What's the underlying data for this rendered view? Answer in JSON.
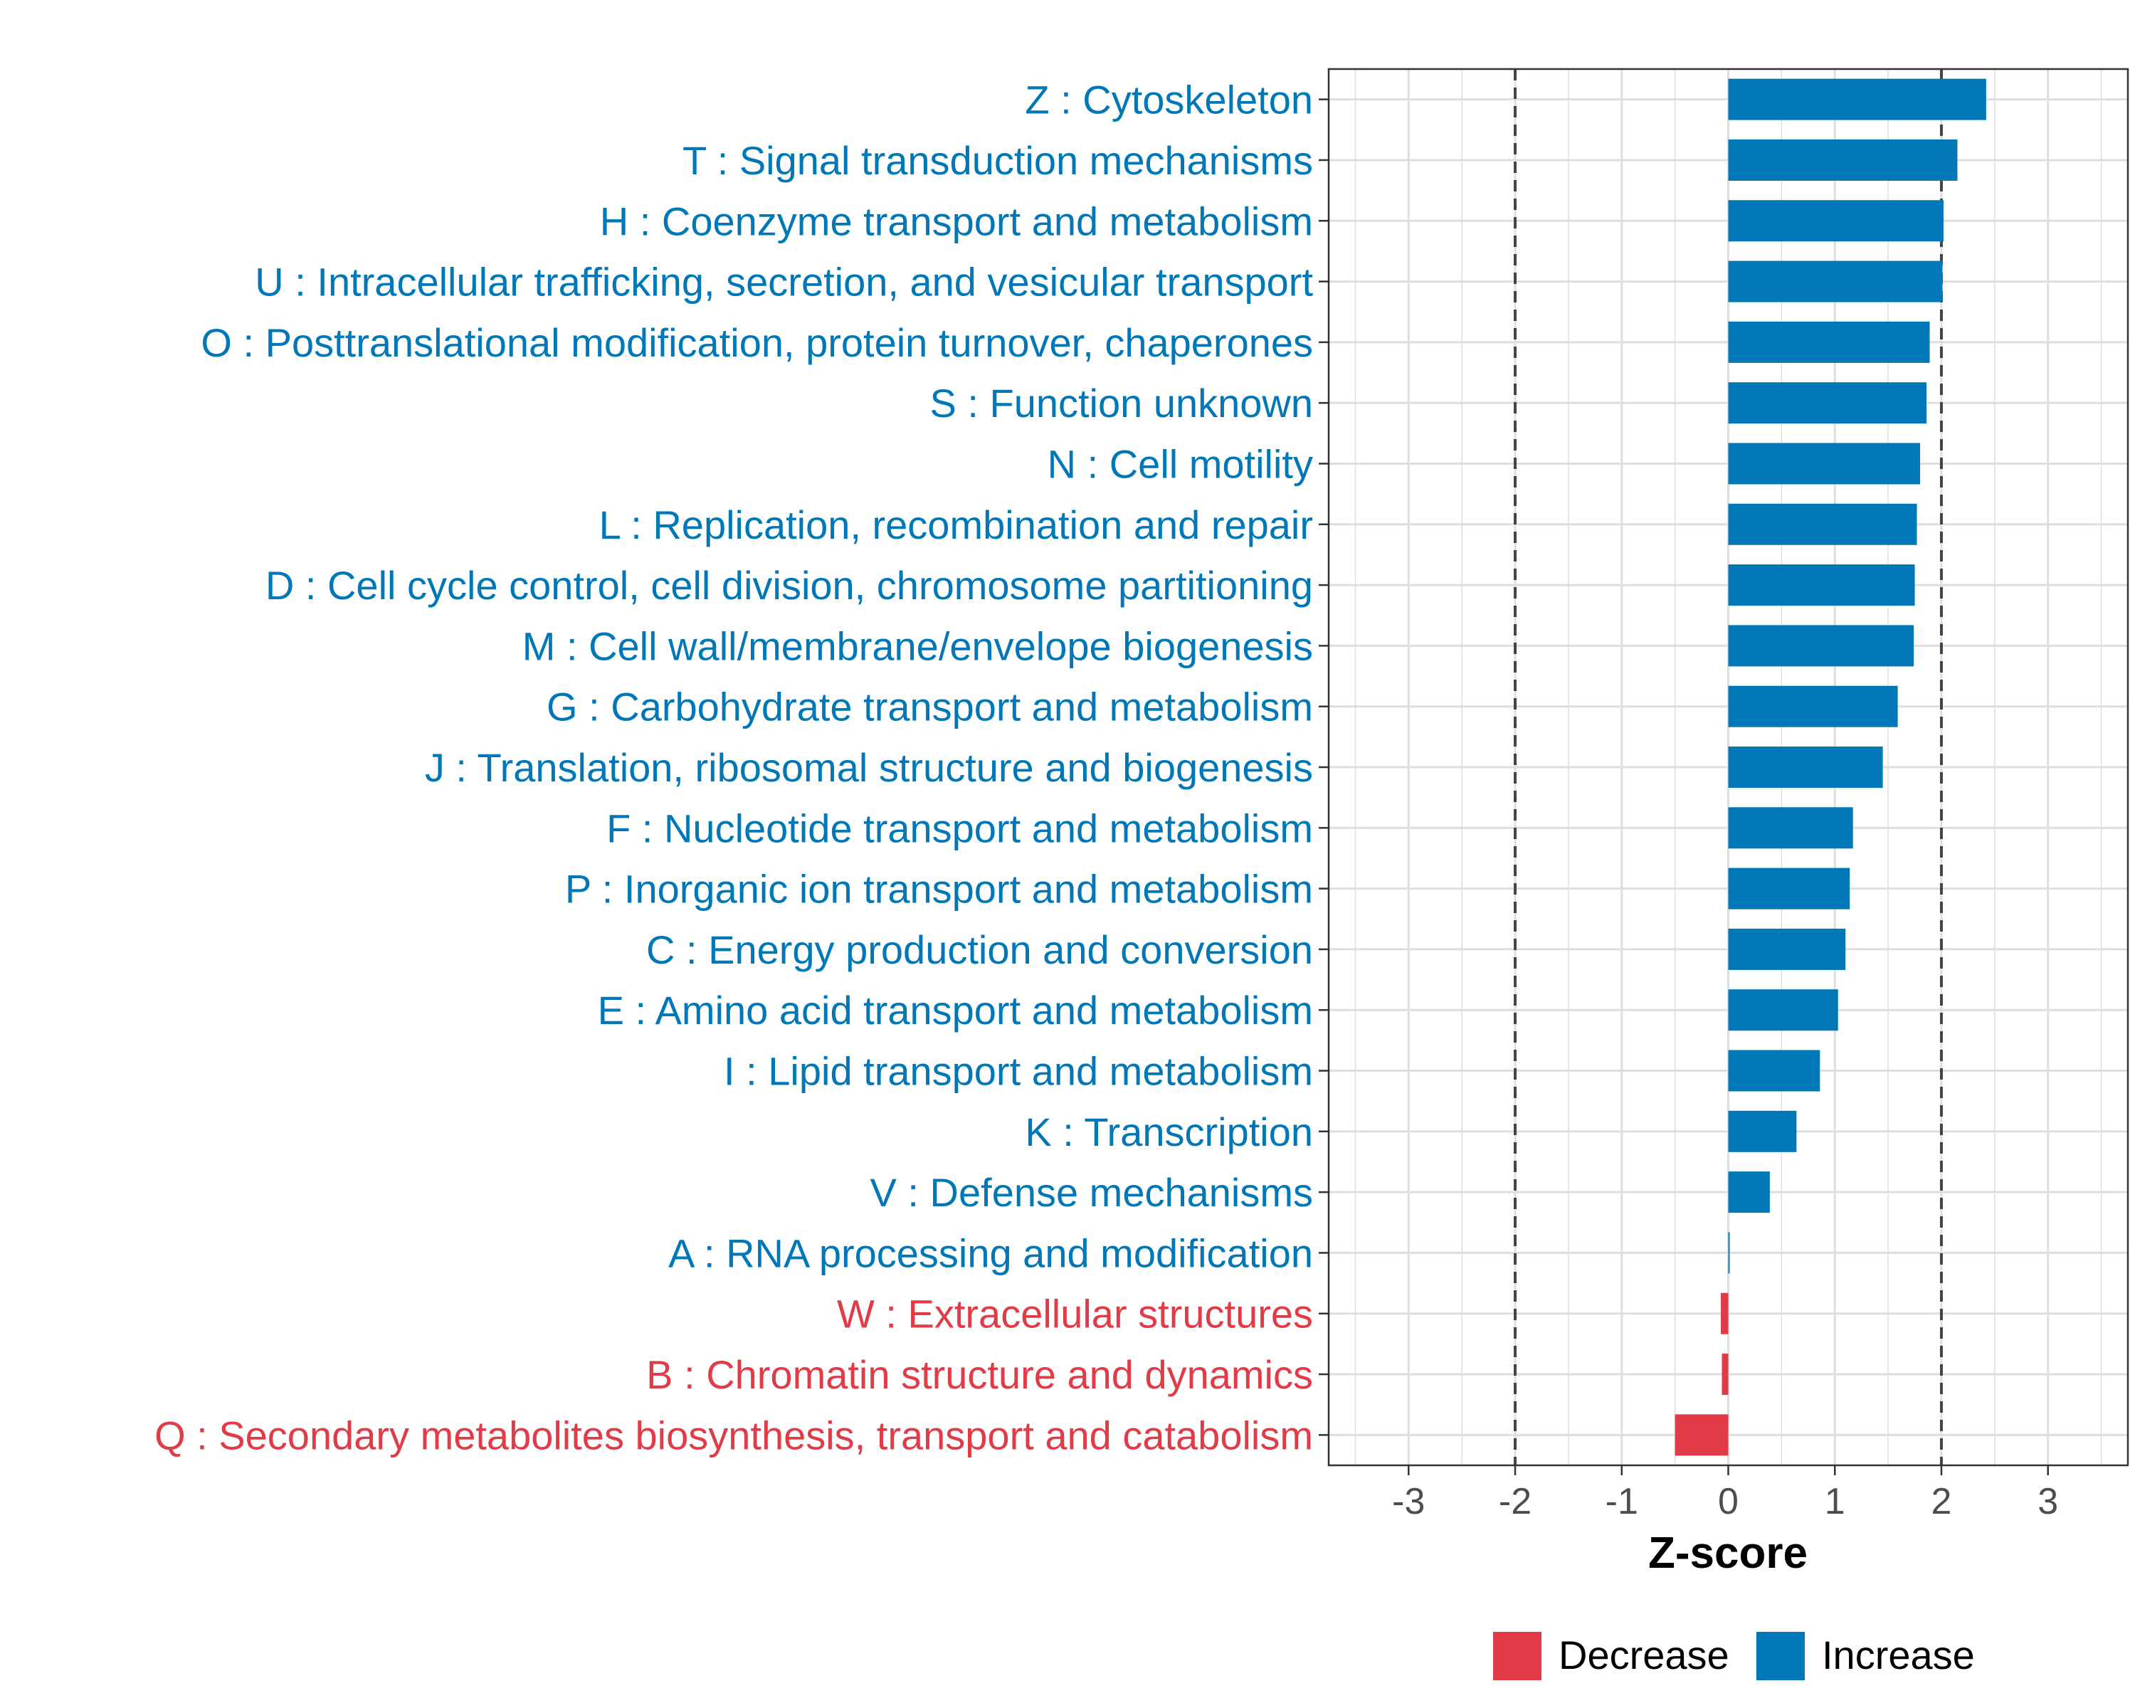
{
  "chart_data": {
    "type": "bar",
    "orientation": "horizontal",
    "title": "",
    "xlabel": "Z-score",
    "ylabel": "",
    "xlim": [
      -3.75,
      3.75
    ],
    "xticks": [
      -3,
      -2,
      -1,
      0,
      1,
      2,
      3
    ],
    "xtick_labels": [
      "-3",
      "-2",
      "-1",
      "0",
      "1",
      "2",
      "3"
    ],
    "threshold_lines": [
      -2,
      2
    ],
    "grid": true,
    "legend_position": "bottom",
    "colors": {
      "Decrease": "#e03b47",
      "Increase": "#0077b6"
    },
    "categories": [
      "Z : Cytoskeleton",
      "T : Signal transduction mechanisms",
      "H : Coenzyme transport and metabolism",
      "U : Intracellular trafficking, secretion, and vesicular transport",
      "O : Posttranslational modification, protein turnover, chaperones",
      "S : Function unknown",
      "N : Cell motility",
      "L : Replication, recombination and repair",
      "D : Cell cycle control, cell division, chromosome partitioning",
      "M : Cell wall/membrane/envelope biogenesis",
      "G : Carbohydrate transport and metabolism",
      "J : Translation, ribosomal structure and biogenesis",
      "F : Nucleotide transport and metabolism",
      "P : Inorganic ion transport and metabolism",
      "C : Energy production and conversion",
      "E : Amino acid transport and metabolism",
      "I : Lipid transport and metabolism",
      "K : Transcription",
      "V : Defense mechanisms",
      "A : RNA processing and modification",
      "W : Extracellular structures",
      "B : Chromatin structure and dynamics",
      "Q : Secondary metabolites biosynthesis, transport and catabolism"
    ],
    "values": [
      2.42,
      2.15,
      2.02,
      2.01,
      1.89,
      1.86,
      1.8,
      1.77,
      1.75,
      1.74,
      1.59,
      1.45,
      1.17,
      1.14,
      1.1,
      1.03,
      0.86,
      0.64,
      0.39,
      0.01,
      -0.07,
      -0.06,
      -0.5
    ],
    "groups": [
      "Increase",
      "Increase",
      "Increase",
      "Increase",
      "Increase",
      "Increase",
      "Increase",
      "Increase",
      "Increase",
      "Increase",
      "Increase",
      "Increase",
      "Increase",
      "Increase",
      "Increase",
      "Increase",
      "Increase",
      "Increase",
      "Increase",
      "Increase",
      "Decrease",
      "Decrease",
      "Decrease"
    ],
    "legend": [
      {
        "label": "Decrease",
        "color": "#e03b47"
      },
      {
        "label": "Increase",
        "color": "#0077b6"
      }
    ]
  }
}
